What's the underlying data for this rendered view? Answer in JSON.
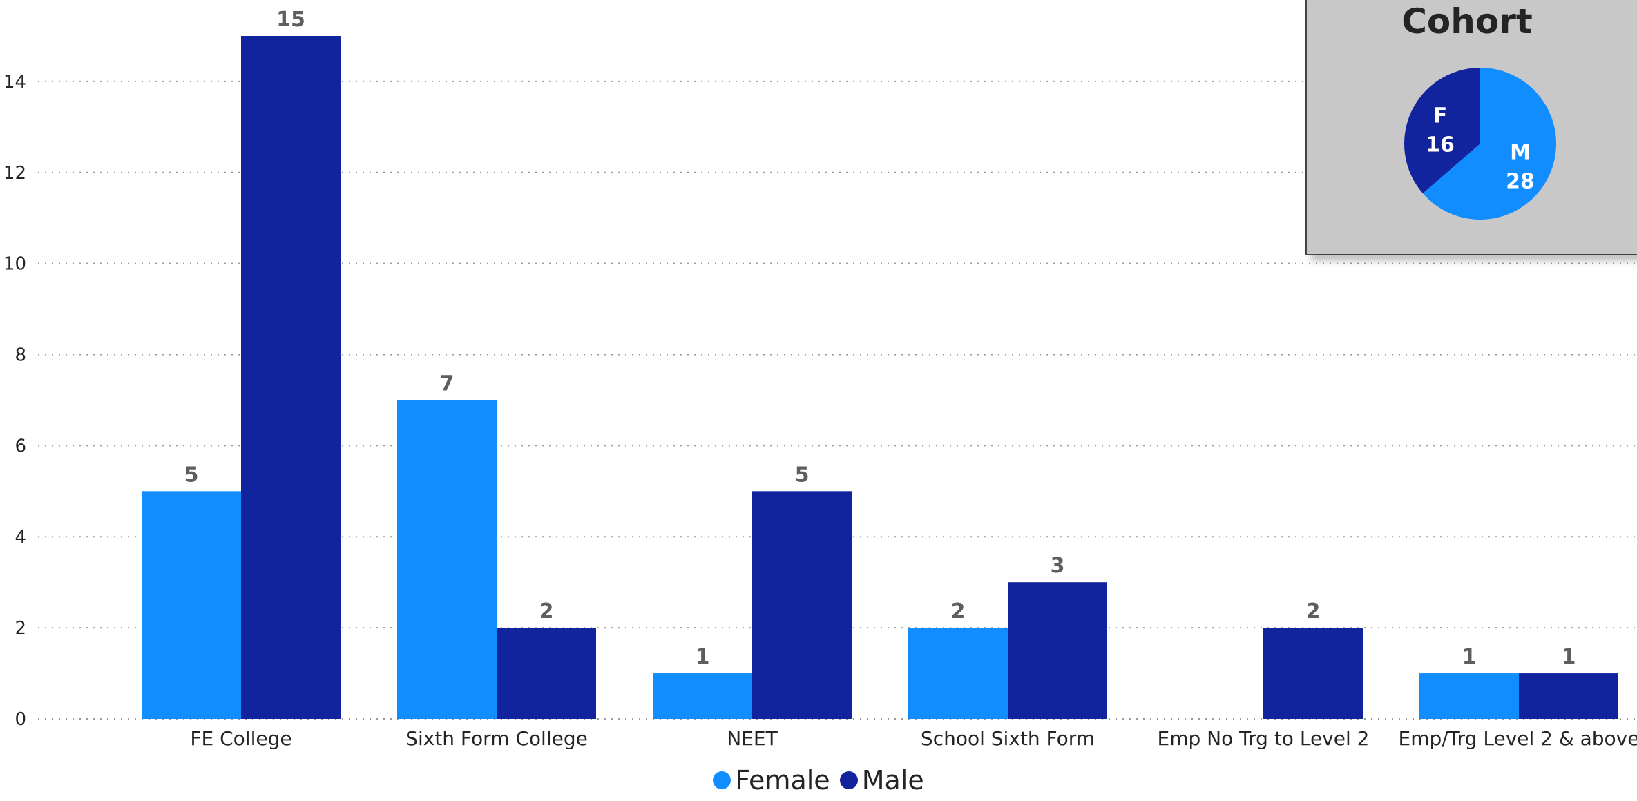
{
  "chart_data": [
    {
      "type": "bar",
      "categories": [
        "FE College",
        "Sixth Form College",
        "NEET",
        "School Sixth Form",
        "Emp No Trg to Level 2",
        "Emp/Trg Level 2 & above"
      ],
      "series": [
        {
          "name": "Female",
          "color": "#118DFF",
          "values": [
            5,
            7,
            1,
            2,
            null,
            1
          ]
        },
        {
          "name": "Male",
          "color": "#12239E",
          "values": [
            15,
            2,
            5,
            3,
            2,
            1
          ]
        }
      ],
      "ylim": [
        0,
        15
      ],
      "yticks": [
        "0",
        "2",
        "4",
        "6",
        "8",
        "10",
        "12",
        "14"
      ],
      "grid": true,
      "legend_position": "bottom",
      "title": "",
      "xlabel": "",
      "ylabel": ""
    },
    {
      "type": "pie",
      "title": "Cohort",
      "slices": [
        {
          "label": "M",
          "value": 28,
          "color": "#118DFF"
        },
        {
          "label": "F",
          "value": 16,
          "color": "#12239E"
        }
      ]
    }
  ]
}
